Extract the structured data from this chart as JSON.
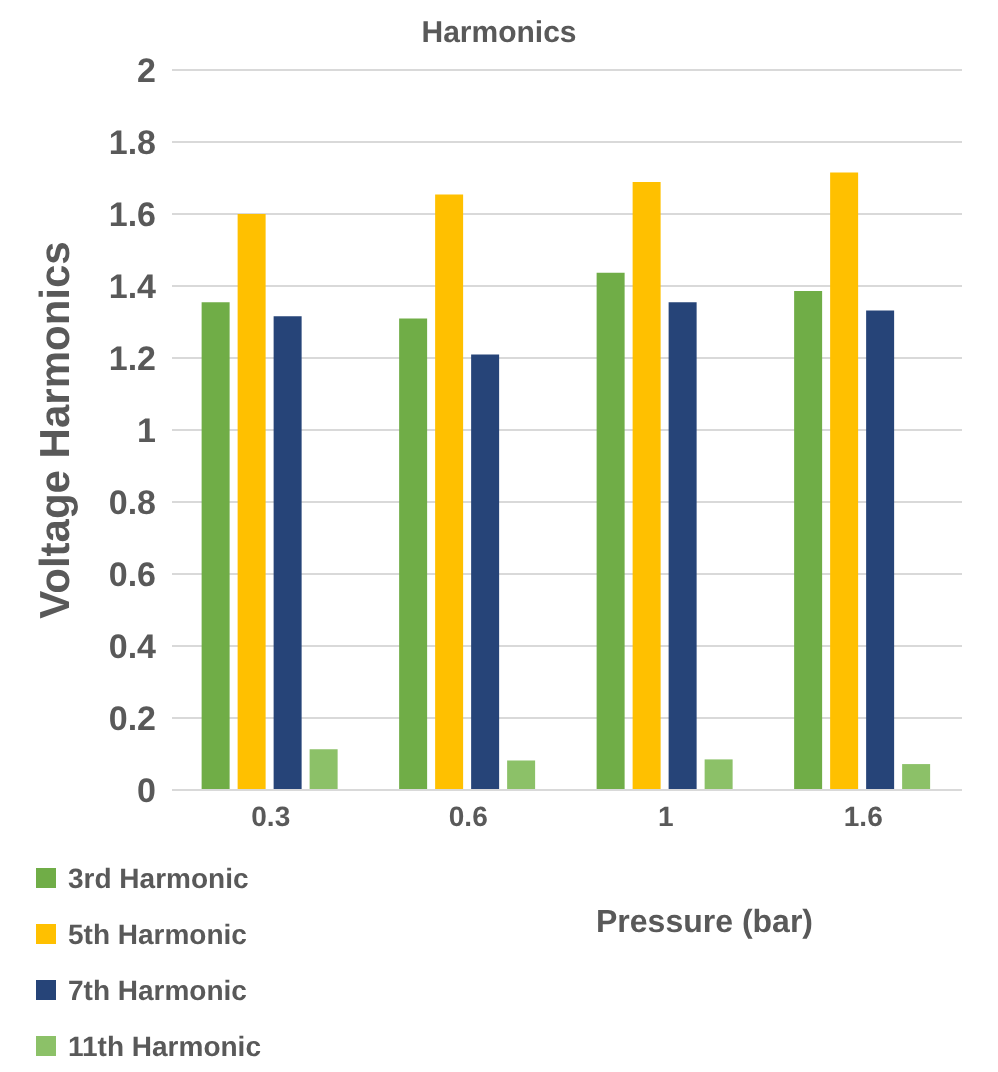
{
  "chart_data": {
    "type": "bar",
    "title": "Harmonics",
    "xlabel": "Pressure (bar)",
    "ylabel": "Voltage Harmonics",
    "categories": [
      "0.3",
      "0.6",
      "1",
      "1.6"
    ],
    "series": [
      {
        "name": "3rd Harmonic",
        "color": "#70ad47",
        "values": [
          1.355,
          1.31,
          1.437,
          1.386
        ]
      },
      {
        "name": "5th Harmonic",
        "color": "#ffc000",
        "values": [
          1.6,
          1.654,
          1.689,
          1.715
        ]
      },
      {
        "name": "7th Harmonic",
        "color": "#264478",
        "values": [
          1.316,
          1.21,
          1.355,
          1.332
        ]
      },
      {
        "name": "11th Harmonic",
        "color": "#8cc168",
        "values": [
          0.113,
          0.082,
          0.085,
          0.072
        ]
      }
    ],
    "ylim": [
      0,
      2
    ],
    "yticks": [
      0,
      0.2,
      0.4,
      0.6,
      0.8,
      1,
      1.2,
      1.4,
      1.6,
      1.8,
      2
    ],
    "grid": "y",
    "legend": "bottom left"
  }
}
